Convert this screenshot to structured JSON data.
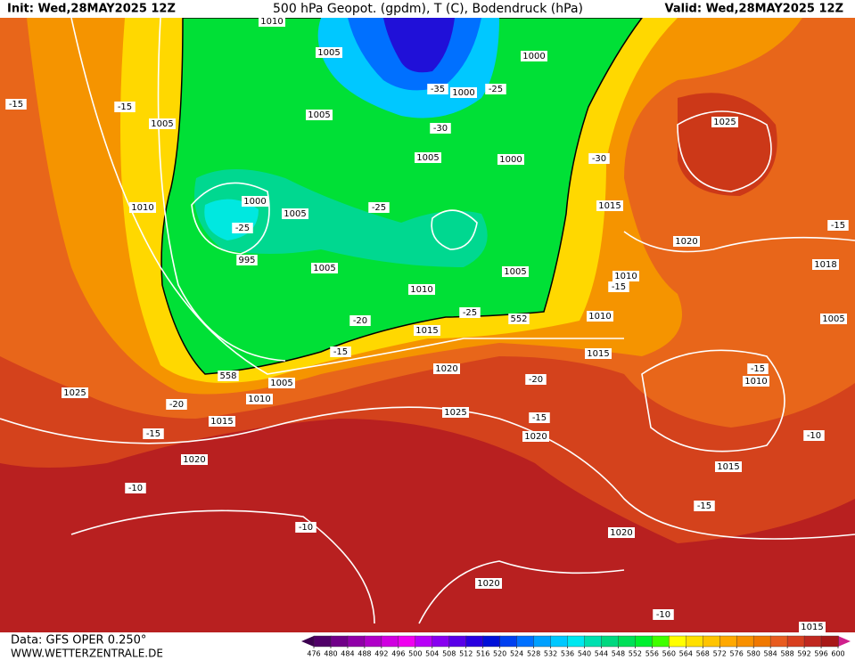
{
  "header": {
    "init": "Init: Wed,28MAY2025 12Z",
    "title": "500 hPa Geopot. (gpdm), T (C), Bodendruck (hPa)",
    "valid": "Valid: Wed,28MAY2025 12Z"
  },
  "footer": {
    "source": "Data: GFS OPER 0.250°",
    "site": "WWW.WETTERZENTRALE.DE"
  },
  "map": {
    "labels": [
      "1010",
      "1005",
      "1000",
      "-35",
      "1000",
      "-25",
      "-15",
      "-15",
      "1005",
      "1005",
      "-30",
      "1025",
      "1005",
      "1000",
      "-30",
      "1010",
      "1000",
      "1005",
      "-25",
      "1015",
      "-25",
      "995",
      "1020",
      "-15",
      "1005",
      "1005",
      "1010",
      "1010",
      "-15",
      "1018",
      "-25",
      "552",
      "1010",
      "1005",
      "-20",
      "1015",
      "-15",
      "1015",
      "1020",
      "-15",
      "558",
      "1005",
      "1010",
      "-20",
      "1025",
      "1010",
      "-20",
      "1025",
      "1015",
      "-15",
      "-15",
      "1020",
      "-10",
      "1020",
      "1015",
      "-10",
      "-15",
      "-10",
      "1020",
      "1020",
      "-10",
      "1015"
    ]
  },
  "colorbar": {
    "ticks": [
      476,
      480,
      484,
      488,
      492,
      496,
      500,
      504,
      508,
      512,
      516,
      520,
      524,
      528,
      532,
      536,
      540,
      544,
      548,
      552,
      556,
      560,
      564,
      568,
      572,
      576,
      580,
      584,
      588,
      592,
      596,
      600
    ],
    "colors": [
      "#500068",
      "#700088",
      "#9000a8",
      "#b000c8",
      "#d000e0",
      "#f000f0",
      "#b800f8",
      "#8800f0",
      "#5800e8",
      "#2800e0",
      "#0010d8",
      "#0040f0",
      "#0070ff",
      "#00a0ff",
      "#00c8ff",
      "#00e8f0",
      "#00e0b0",
      "#00d880",
      "#00e058",
      "#00f030",
      "#40ff00",
      "#ffff00",
      "#ffe000",
      "#ffc400",
      "#ffa800",
      "#f89000",
      "#f07800",
      "#e85c20",
      "#d84020",
      "#c02820",
      "#a81818"
    ]
  }
}
